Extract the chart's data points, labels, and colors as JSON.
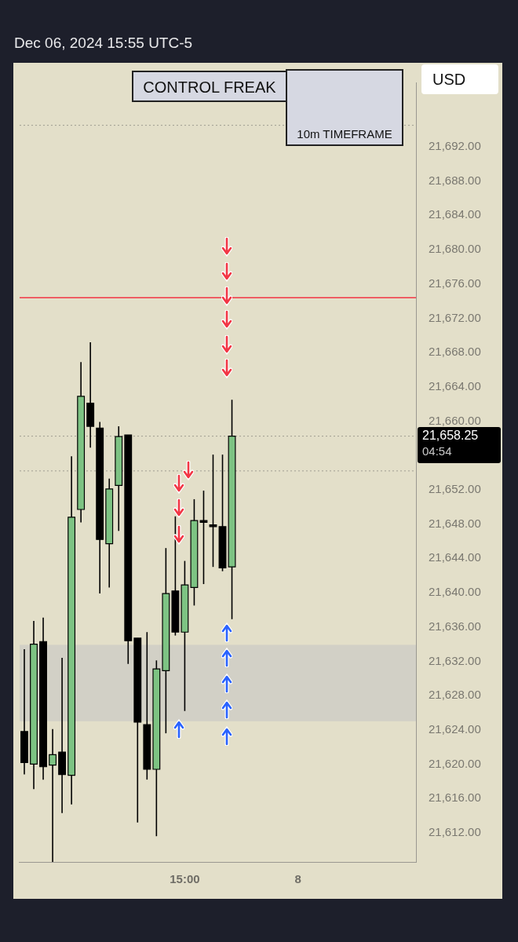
{
  "chart_data": {
    "type": "candlestick",
    "title": "Dec 06, 2024 15:55 UTC-5",
    "categories": [
      null,
      null,
      null,
      null,
      null,
      null,
      null,
      null,
      null,
      null,
      null,
      null,
      null,
      null,
      null,
      null,
      null,
      "15:00",
      null,
      null,
      null,
      null,
      null,
      null,
      null,
      null,
      null,
      null,
      null,
      "8",
      null,
      null,
      null,
      null,
      null,
      null,
      null,
      null,
      null,
      null,
      null,
      null
    ],
    "ohlc": [
      [
        21623.8,
        21633.4,
        21618.8,
        21620.2
      ],
      [
        21620.0,
        21636.7,
        21617.1,
        21634.0
      ],
      [
        21634.3,
        21637.1,
        21618.2,
        21619.7
      ],
      [
        21619.9,
        21624.1,
        21608.6,
        21621.1
      ],
      [
        21621.4,
        21632.4,
        21614.3,
        21618.8
      ],
      [
        21618.7,
        21655.9,
        21615.3,
        21648.8
      ],
      [
        21649.7,
        21666.9,
        21648.2,
        21662.9
      ],
      [
        21662.1,
        21669.2,
        21656.9,
        21659.4
      ],
      [
        21659.2,
        21659.9,
        21639.9,
        21646.2
      ],
      [
        21645.7,
        21653.3,
        21640.6,
        21652.1
      ],
      [
        21652.5,
        21659.4,
        21647.2,
        21658.2
      ],
      [
        21658.4,
        21658.4,
        21631.7,
        21634.4
      ],
      [
        21634.7,
        21634.7,
        21613.2,
        21624.9
      ],
      [
        21624.6,
        21635.4,
        21618.2,
        21619.4
      ],
      [
        21619.4,
        21632.1,
        21611.6,
        21631.1
      ],
      [
        21630.9,
        21645.2,
        21623.6,
        21639.9
      ],
      [
        21640.2,
        21648.9,
        21635.0,
        21635.4
      ],
      [
        21635.4,
        21643.7,
        21626.2,
        21640.9
      ],
      [
        21640.6,
        21650.9,
        21638.5,
        21648.4
      ],
      [
        21648.4,
        21651.9,
        21641.0,
        21648.2
      ],
      [
        21647.9,
        21656.1,
        21643.0,
        21647.7
      ],
      [
        21647.7,
        21656.1,
        21642.5,
        21642.9
      ],
      [
        21643.0,
        21662.5,
        21636.9,
        21658.25
      ],
      null,
      null,
      null,
      null,
      null,
      null,
      null,
      null,
      null,
      null,
      null,
      null,
      null,
      null,
      null,
      null,
      null,
      null,
      null
    ],
    "colors": [
      "#000000",
      "#7dc383",
      "#000000",
      "#7dc383",
      "#000000",
      "#7dc383",
      "#7dc383",
      "#000000",
      "#000000",
      "#7dc383",
      "#7dc383",
      "#000000",
      "#000000",
      "#000000",
      "#7dc383",
      "#7dc383",
      "#000000",
      "#7dc383",
      "#7dc383",
      "#000000",
      "#000000",
      "#000000",
      "#7dc383",
      null,
      null,
      null,
      null,
      null,
      null,
      null,
      null,
      null,
      null,
      null,
      null,
      null,
      null,
      null,
      null,
      null,
      null,
      null
    ],
    "ylim": [
      21608.6,
      21699.5
    ],
    "yticks": [
      {
        "value": 21612,
        "label": "21,612.00"
      },
      {
        "value": 21616,
        "label": "21,616.00"
      },
      {
        "value": 21620,
        "label": "21,620.00"
      },
      {
        "value": 21624,
        "label": "21,624.00"
      },
      {
        "value": 21628,
        "label": "21,628.00"
      },
      {
        "value": 21632,
        "label": "21,632.00"
      },
      {
        "value": 21636,
        "label": "21,636.00"
      },
      {
        "value": 21640,
        "label": "21,640.00"
      },
      {
        "value": 21644,
        "label": "21,644.00"
      },
      {
        "value": 21648,
        "label": "21,648.00"
      },
      {
        "value": 21652,
        "label": "21,652.00"
      },
      {
        "value": 21660,
        "label": "21,660.00"
      },
      {
        "value": 21664,
        "label": "21,664.00"
      },
      {
        "value": 21668,
        "label": "21,668.00"
      },
      {
        "value": 21672,
        "label": "21,672.00"
      },
      {
        "value": 21676,
        "label": "21,676.00"
      },
      {
        "value": 21680,
        "label": "21,680.00"
      },
      {
        "value": 21684,
        "label": "21,684.00"
      },
      {
        "value": 21688,
        "label": "21,688.00"
      },
      {
        "value": 21692,
        "label": "21,692.00"
      }
    ],
    "ref_lines": [
      {
        "axis": "y",
        "value": 21674.4,
        "color": "#f23645",
        "line_style": "solid"
      },
      {
        "axis": "y",
        "value": 21658.25,
        "color": "#9e9c90",
        "line_style": "dotted"
      },
      {
        "axis": "y",
        "value": 21654.2,
        "color": "#9e9c90",
        "line_style": "dotted"
      },
      {
        "axis": "y",
        "value": 21694.5,
        "color": "#9e9c90",
        "line_style": "dotted"
      }
    ],
    "bands": [
      {
        "axis": "y",
        "from": 21625.0,
        "to": 21633.9,
        "color": "#d2d0c6"
      }
    ],
    "annotations": [
      "CONTROL FREAK",
      "10m TIMEFRAME",
      "USD",
      "21,658.25",
      "04:54"
    ],
    "grid": false,
    "legend": false
  }
}
